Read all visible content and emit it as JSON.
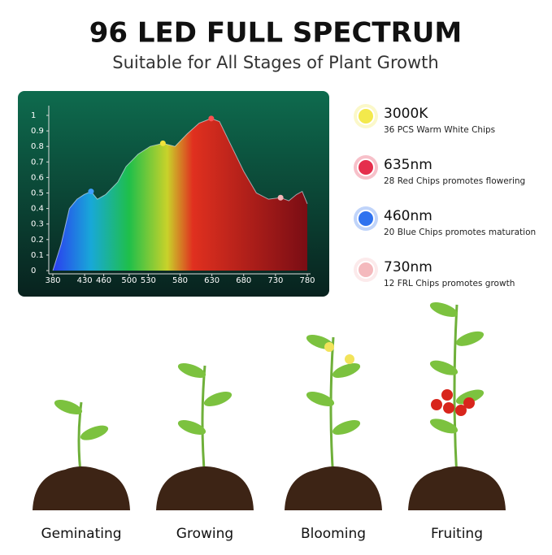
{
  "header": {
    "title": "96 LED FULL SPECTRUM",
    "subtitle": "Suitable for All Stages of Plant Growth"
  },
  "chart_data": {
    "type": "area",
    "x": [
      380,
      393,
      406,
      418,
      429,
      440,
      450,
      463,
      482,
      495,
      514,
      533,
      553,
      572,
      591,
      610,
      629,
      642,
      661,
      680,
      700,
      719,
      738,
      751,
      763,
      772,
      780
    ],
    "values": [
      0,
      0.17,
      0.4,
      0.46,
      0.49,
      0.51,
      0.46,
      0.49,
      0.57,
      0.67,
      0.75,
      0.8,
      0.82,
      0.8,
      0.88,
      0.95,
      0.98,
      0.96,
      0.8,
      0.64,
      0.5,
      0.46,
      0.47,
      0.45,
      0.49,
      0.51,
      0.43
    ],
    "xlim": [
      380,
      780
    ],
    "ylim": [
      0,
      1
    ],
    "xticks": [
      380,
      430,
      460,
      500,
      530,
      580,
      630,
      680,
      730,
      780
    ],
    "yticks": [
      0,
      0.1,
      0.2,
      0.3,
      0.4,
      0.5,
      0.6,
      0.7,
      0.8,
      0.9,
      1
    ]
  },
  "leds": [
    {
      "title": "3000K",
      "desc": "36 PCS Warm White Chips",
      "color": "#f3e94c"
    },
    {
      "title": "635nm",
      "desc": "28 Red Chips promotes flowering",
      "color": "#e52e4c"
    },
    {
      "title": "460nm",
      "desc": "20 Blue Chips promotes maturation",
      "color": "#2f72ef"
    },
    {
      "title": "730nm",
      "desc": "12 FRL Chips promotes growth",
      "color": "#f4b9bd"
    }
  ],
  "stages": [
    "Geminating",
    "Growing",
    "Blooming",
    "Fruiting"
  ]
}
